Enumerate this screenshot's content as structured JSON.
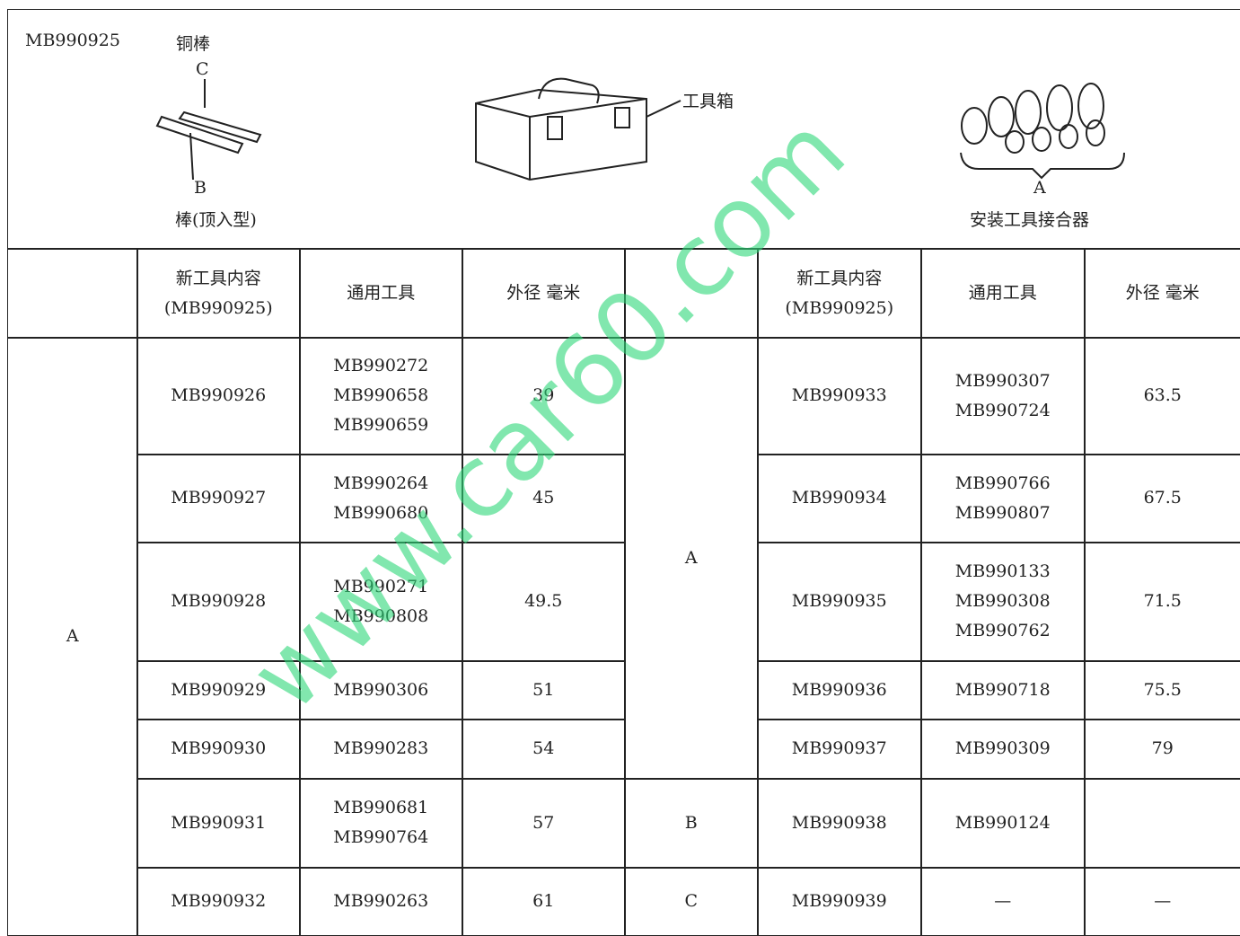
{
  "figure": {
    "part_no": "MB990925",
    "copper_bar": "铜棒",
    "label_c": "C",
    "label_b": "B",
    "bar_type": "棒(顶入型)",
    "toolbox": "工具箱",
    "label_a": "A",
    "adapter": "安装工具接合器"
  },
  "watermark": "www.car60.com",
  "table": {
    "header": [
      [],
      [
        "新工具内容",
        "(MB990925)"
      ],
      [
        "通用工具"
      ],
      [
        "外径  毫米"
      ],
      [],
      [
        "新工具内容",
        "(MB990925)"
      ],
      [
        "通用工具"
      ],
      [
        "外径  毫米"
      ]
    ],
    "left_groups": [
      {
        "label": "A",
        "rows": [
          {
            "new": "MB990926",
            "general": [
              "MB990272",
              "MB990658",
              "MB990659"
            ],
            "od": "39"
          },
          {
            "new": "MB990927",
            "general": [
              "MB990264",
              "MB990680"
            ],
            "od": "45"
          },
          {
            "new": "MB990928",
            "general": [
              "MB990271",
              "MB990808"
            ],
            "od": "49.5"
          },
          {
            "new": "MB990929",
            "general": [
              "MB990306"
            ],
            "od": "51"
          },
          {
            "new": "MB990930",
            "general": [
              "MB990283"
            ],
            "od": "54"
          },
          {
            "new": "MB990931",
            "general": [
              "MB990681",
              "MB990764"
            ],
            "od": "57"
          },
          {
            "new": "MB990932",
            "general": [
              "MB990263"
            ],
            "od": "61"
          }
        ]
      }
    ],
    "right_groups": [
      {
        "label": "A",
        "rows": [
          {
            "new": "MB990933",
            "general": [
              "MB990307",
              "MB990724"
            ],
            "od": "63.5"
          },
          {
            "new": "MB990934",
            "general": [
              "MB990766",
              "MB990807"
            ],
            "od": "67.5"
          },
          {
            "new": "MB990935",
            "general": [
              "MB990133",
              "MB990308",
              "MB990762"
            ],
            "od": "71.5"
          },
          {
            "new": "MB990936",
            "general": [
              "MB990718"
            ],
            "od": "75.5"
          },
          {
            "new": "MB990937",
            "general": [
              "MB990309"
            ],
            "od": "79"
          }
        ]
      },
      {
        "label": "B",
        "rows": [
          {
            "new": "MB990938",
            "general": [
              "MB990124"
            ]
          }
        ]
      },
      {
        "label": "C",
        "rows": [
          {
            "new": "MB990939",
            "general": [
              "—"
            ],
            "od": "—"
          }
        ]
      }
    ]
  }
}
